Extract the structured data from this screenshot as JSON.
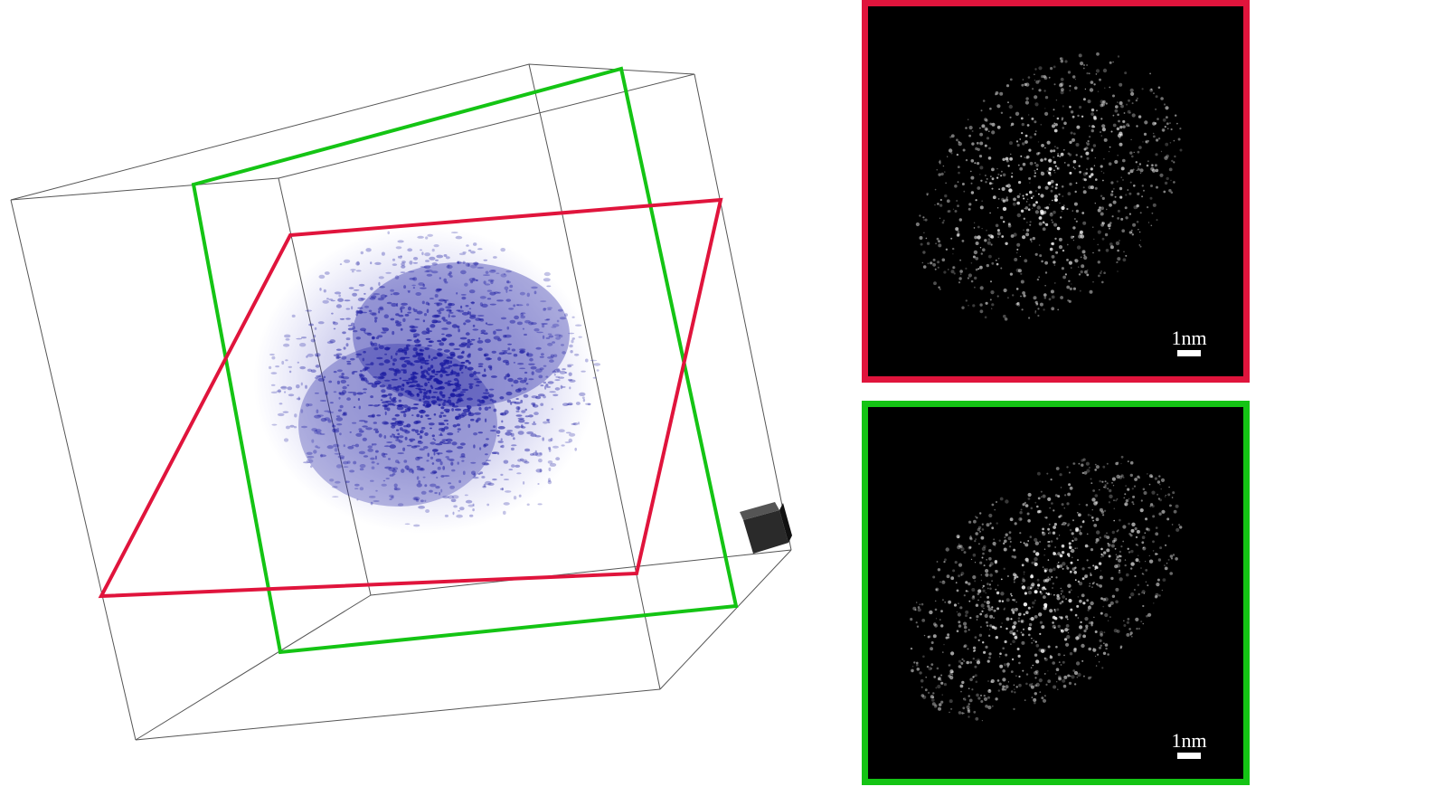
{
  "panels": {
    "red_slice": {
      "frame_color": "#e0143c",
      "scale_label": "1nm"
    },
    "green_slice": {
      "frame_color": "#14c414",
      "scale_label": "1nm"
    }
  },
  "volume": {
    "outline_color": "#555555",
    "density_color": "#1a1aa0",
    "orientation_cube_color": "#2a2a2a"
  }
}
